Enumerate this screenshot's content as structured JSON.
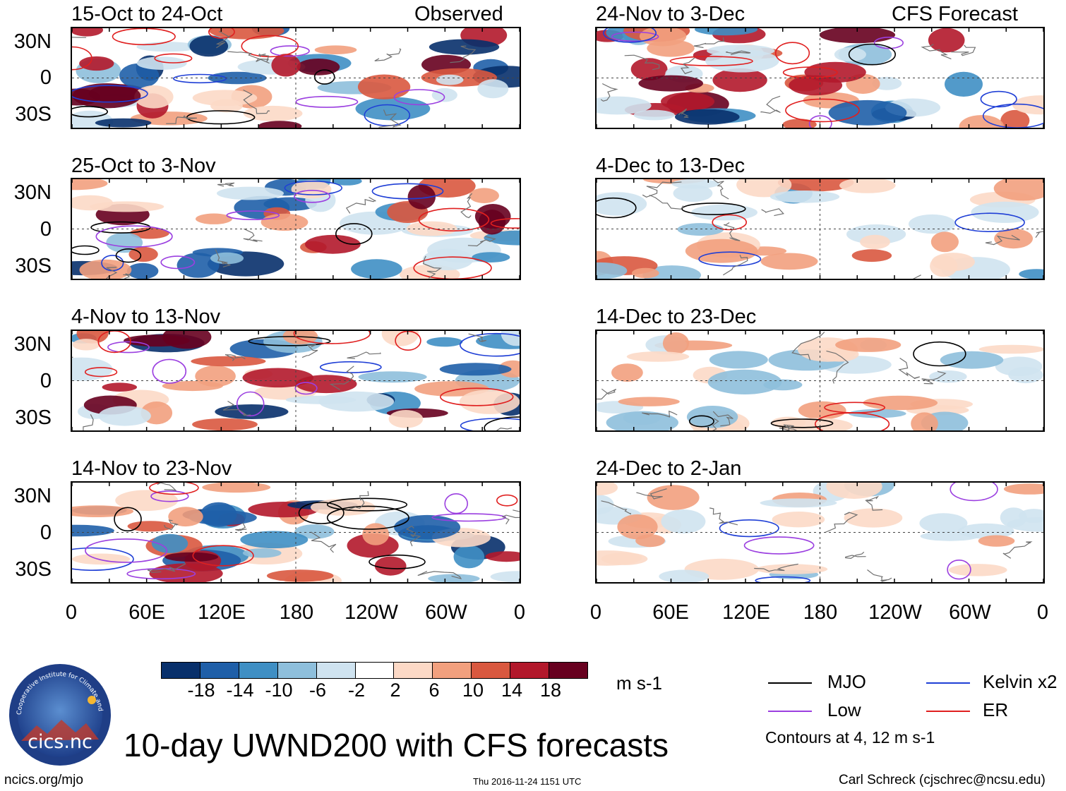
{
  "chart_data": {
    "type": "heatmap",
    "title": "10-day UWND200 with CFS forecasts",
    "variable": "200-hPa zonal wind (UWND200)",
    "units": "m s-1",
    "colorbar": {
      "levels": [
        "-18",
        "-14",
        "-10",
        "-6",
        "-2",
        "2",
        "6",
        "10",
        "14",
        "18"
      ],
      "colors": [
        "#08306b",
        "#1f5fa8",
        "#3f8fc4",
        "#8ebfdc",
        "#cfe3f0",
        "#ffffff",
        "#fcd9c6",
        "#f2a07e",
        "#d9583f",
        "#b2182b",
        "#67001f"
      ]
    },
    "contour_legend": [
      {
        "label": "MJO",
        "color": "#000000"
      },
      {
        "label": "Kelvin x2",
        "color": "#1f3fd6"
      },
      {
        "label": "Low",
        "color": "#9b3fe0"
      },
      {
        "label": "ER",
        "color": "#e01f1f"
      }
    ],
    "contour_note": "Contours at 4, 12 m s-1",
    "x_ticks": [
      "0",
      "60E",
      "120E",
      "180",
      "120W",
      "60W",
      "0"
    ],
    "y_ticks": [
      "30N",
      "0",
      "30S"
    ],
    "xlim": [
      0,
      360
    ],
    "ylim": [
      -40,
      40
    ],
    "panels": [
      {
        "id": "p1",
        "title": "15-Oct to 24-Oct",
        "label": "Observed",
        "column": "observed"
      },
      {
        "id": "p2",
        "title": "25-Oct to 3-Nov",
        "label": "",
        "column": "observed"
      },
      {
        "id": "p3",
        "title": "4-Nov to 13-Nov",
        "label": "",
        "column": "observed"
      },
      {
        "id": "p4",
        "title": "14-Nov to 23-Nov",
        "label": "",
        "column": "observed"
      },
      {
        "id": "p5",
        "title": "24-Nov to 3-Dec",
        "label": "CFS Forecast",
        "column": "forecast"
      },
      {
        "id": "p6",
        "title": "4-Dec to 13-Dec",
        "label": "",
        "column": "forecast"
      },
      {
        "id": "p7",
        "title": "14-Dec to 23-Dec",
        "label": "",
        "column": "forecast"
      },
      {
        "id": "p8",
        "title": "24-Dec to 2-Jan",
        "label": "",
        "column": "forecast"
      }
    ]
  },
  "branding": {
    "logo_text": "cics.nc",
    "logo_ring_text": "Cooperative Institute for Climate and Satellites",
    "website": "ncics.org/mjo",
    "timestamp": "Thu 2016-11-24 1151 UTC",
    "author": "Carl Schreck (cjschrec@ncsu.edu)"
  }
}
